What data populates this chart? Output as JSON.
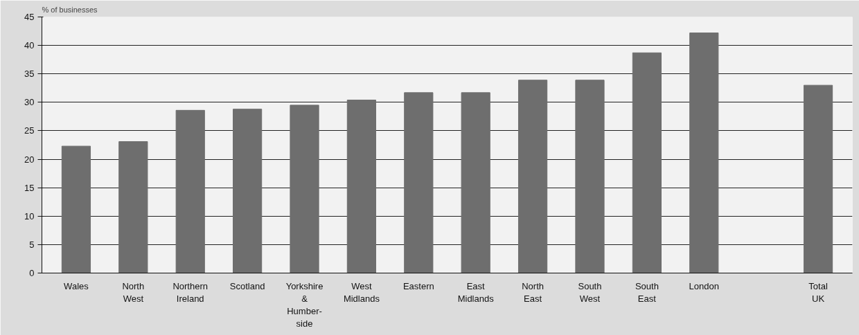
{
  "chart_data": {
    "type": "bar",
    "ylabel": "% of businesses",
    "categories": [
      "Wales",
      "North\nWest",
      "Northern\nIreland",
      "Scotland",
      "Yorkshire\n&\nHumber-\nside",
      "West\nMidlands",
      "Eastern",
      "East\nMidlands",
      "North\nEast",
      "South\nWest",
      "South\nEast",
      "London",
      null,
      "Total\nUK"
    ],
    "values": [
      22.3,
      23.1,
      28.6,
      28.8,
      29.5,
      30.4,
      31.7,
      31.7,
      33.9,
      33.9,
      38.7,
      42.2,
      null,
      33.0
    ],
    "color": "#6e6e6e",
    "ylim": [
      0,
      45
    ],
    "yticks": [
      0,
      5,
      10,
      15,
      20,
      25,
      30,
      35,
      40,
      45
    ],
    "grid": "y"
  }
}
